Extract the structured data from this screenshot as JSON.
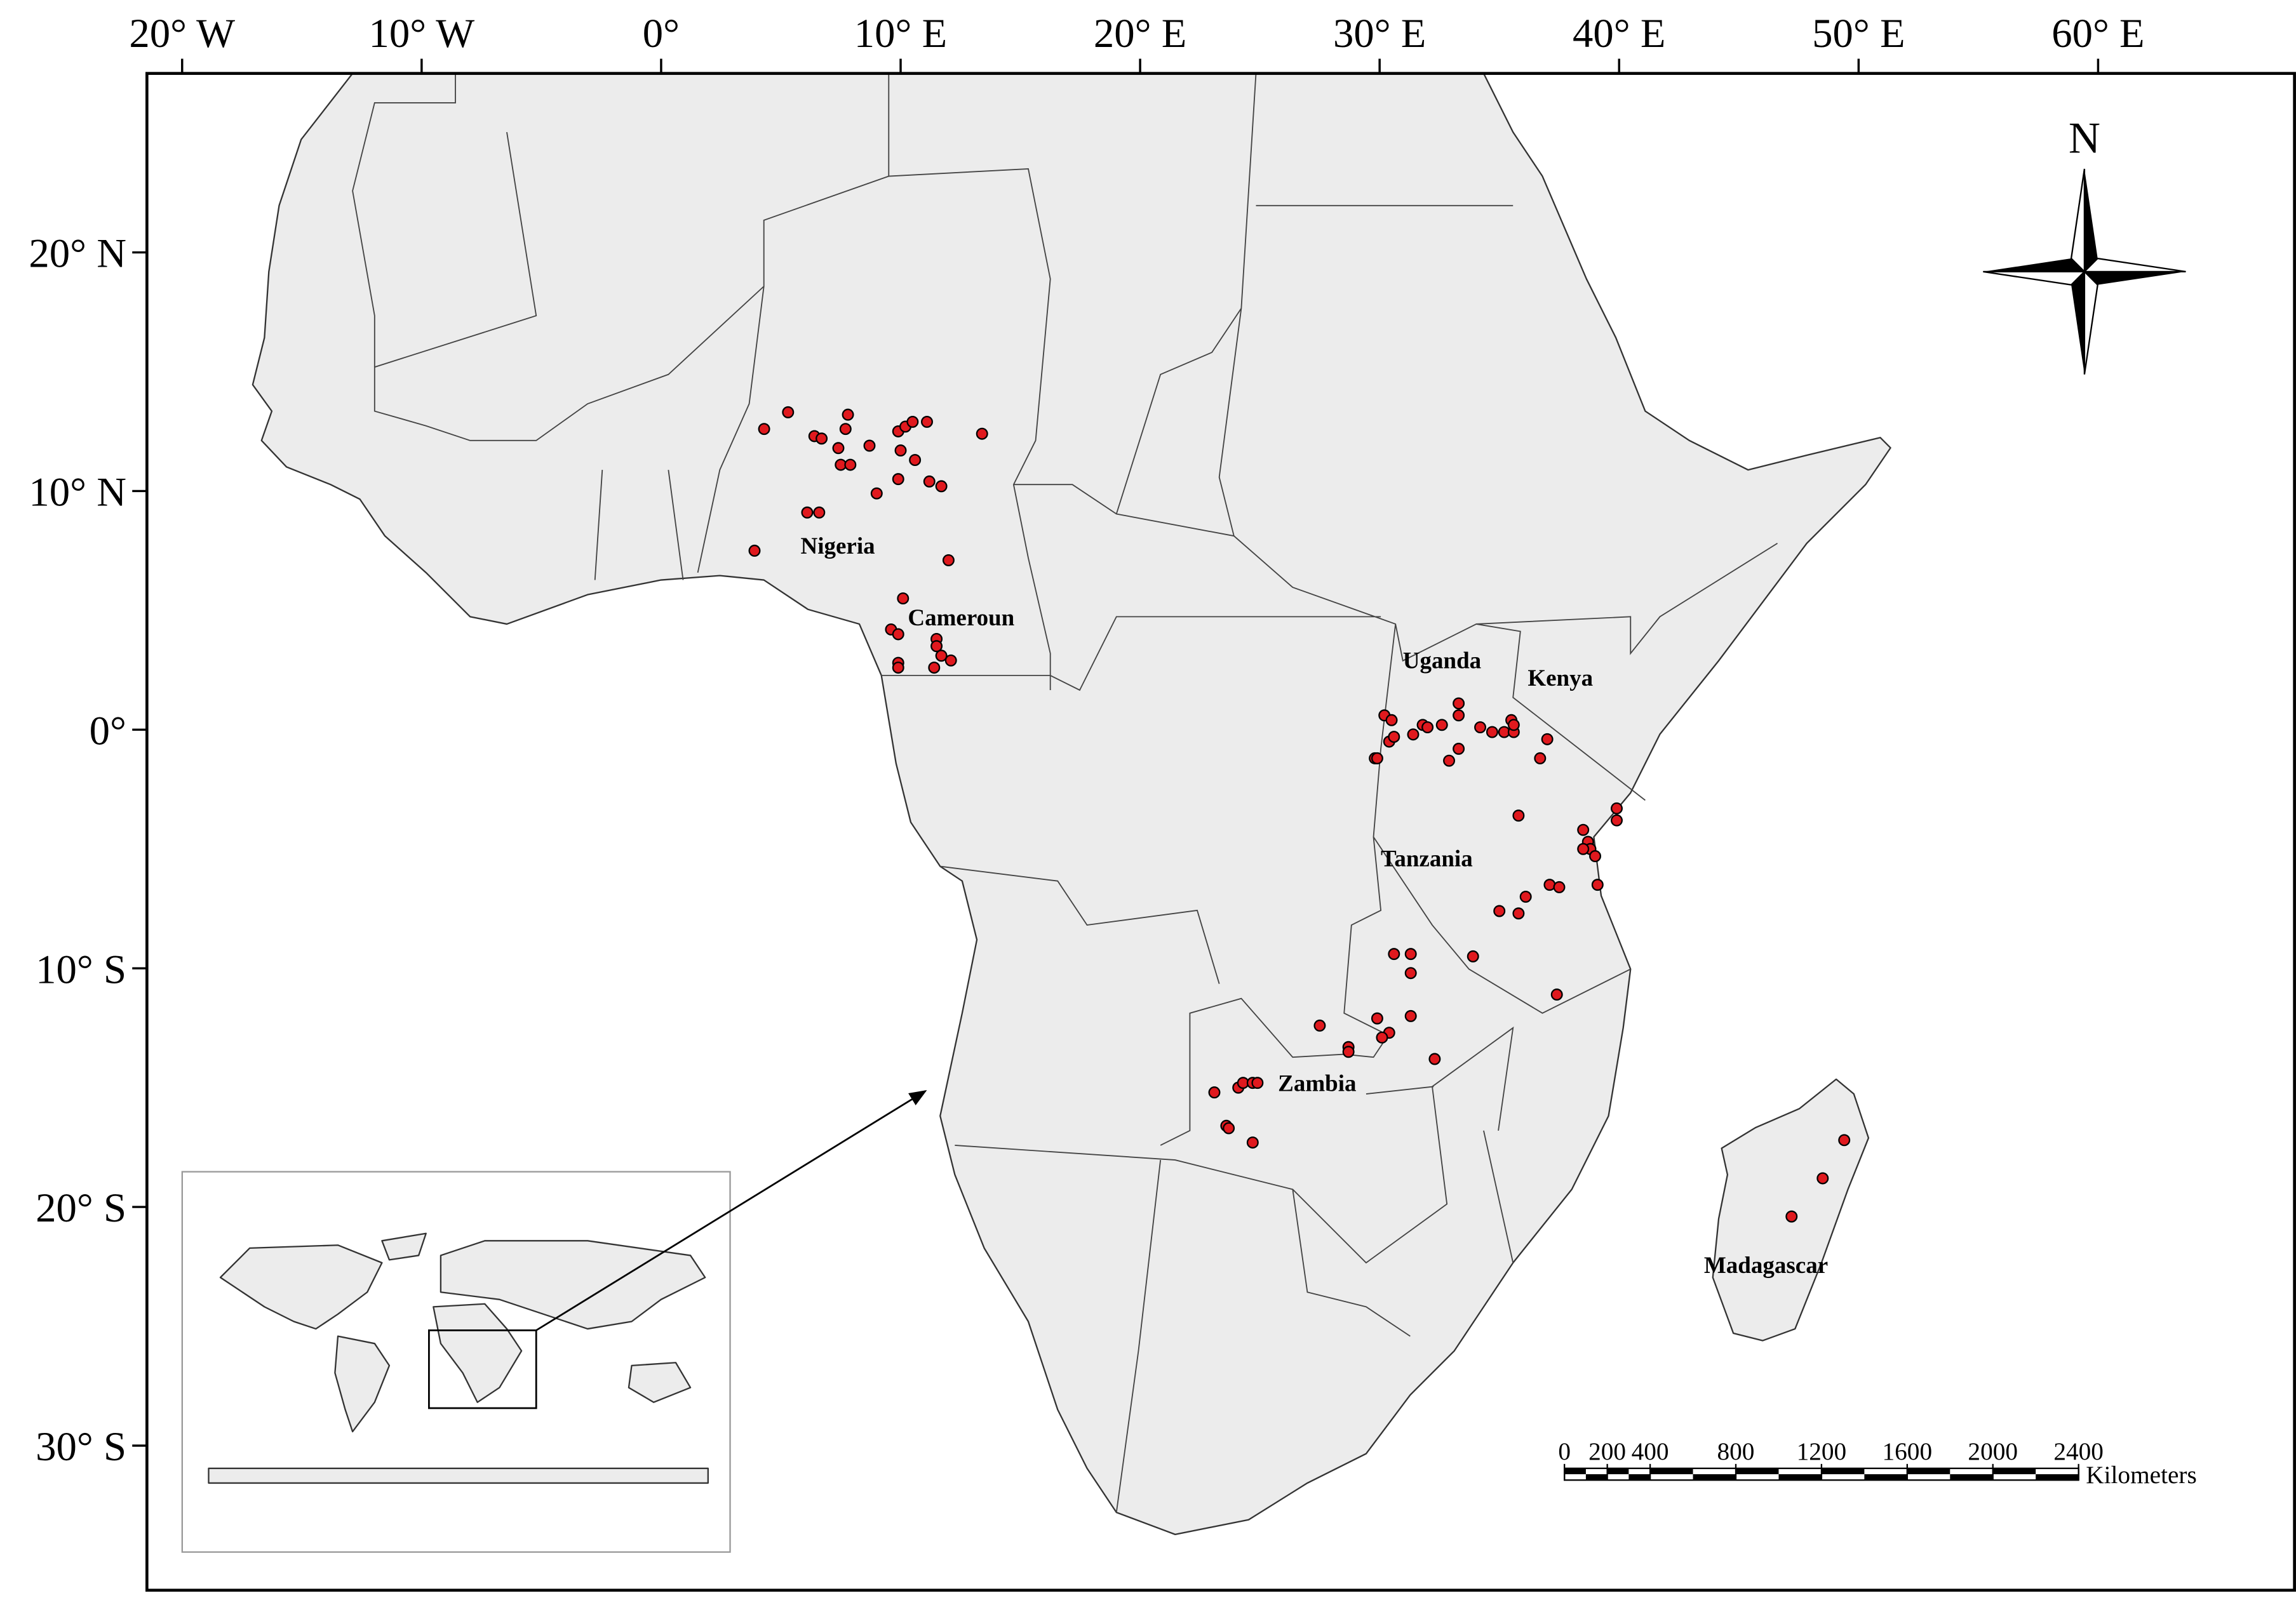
{
  "map": {
    "xlim": [
      -21.47,
      68.2
    ],
    "ylim": [
      -36.06,
      27.5
    ],
    "xticks": [
      {
        "value": -20,
        "label": "20° W"
      },
      {
        "value": -10,
        "label": "10° W"
      },
      {
        "value": 0,
        "label": "0°"
      },
      {
        "value": 10,
        "label": "10° E"
      },
      {
        "value": 20,
        "label": "20° E"
      },
      {
        "value": 30,
        "label": "30° E"
      },
      {
        "value": 40,
        "label": "40° E"
      },
      {
        "value": 50,
        "label": "50° E"
      },
      {
        "value": 60,
        "label": "60° E"
      }
    ],
    "yticks": [
      {
        "value": 20,
        "label": "20° N"
      },
      {
        "value": 10,
        "label": "10° N"
      },
      {
        "value": 0,
        "label": "0°"
      },
      {
        "value": -10,
        "label": "10° S"
      },
      {
        "value": -20,
        "label": "20° S"
      },
      {
        "value": -30,
        "label": "30° S"
      }
    ],
    "north_label": "N",
    "countries": [
      "Nigeria",
      "Cameroun",
      "Uganda",
      "Kenya",
      "Tanzania",
      "Zambia",
      "Madagascar"
    ],
    "point_color": "#e0191e",
    "points": {
      "lon": [
        4.3,
        5.3,
        6.4,
        6.7,
        7.4,
        7.8,
        7.7,
        8.7,
        7.5,
        7.9,
        9.9,
        10.2,
        10.5,
        11.1,
        10.0,
        10.6,
        11.2,
        11.7,
        13.4,
        9.0,
        9.9,
        6.1,
        6.6,
        3.9,
        12.0,
        10.1,
        9.6,
        9.9,
        9.9,
        9.9,
        11.5,
        11.5,
        11.7,
        11.4,
        12.1,
        30.2,
        30.5,
        30.4,
        30.6,
        31.4,
        31.8,
        32.0,
        32.6,
        33.3,
        33.3,
        34.2,
        34.7,
        35.2,
        35.5,
        35.6,
        35.6,
        37.0,
        36.7,
        29.8,
        29.9,
        32.9,
        33.3,
        35.8,
        38.5,
        38.7,
        38.8,
        38.5,
        39.0,
        39.9,
        39.9,
        39.1,
        37.1,
        37.5,
        36.1,
        35.8,
        35.0,
        33.9,
        37.4,
        30.6,
        31.3,
        31.3,
        31.3,
        29.9,
        30.4,
        30.1,
        32.3,
        27.5,
        28.7,
        28.7,
        23.1,
        24.1,
        24.3,
        24.7,
        24.9,
        23.6,
        23.7,
        24.7,
        49.4,
        48.5,
        47.2
      ],
      "lat": [
        12.6,
        13.3,
        12.3,
        12.2,
        11.8,
        13.2,
        12.6,
        11.9,
        11.1,
        11.1,
        12.5,
        12.7,
        12.9,
        12.9,
        11.7,
        11.3,
        10.4,
        10.2,
        12.4,
        9.9,
        10.5,
        9.1,
        9.1,
        7.5,
        7.1,
        5.5,
        4.2,
        4.0,
        2.8,
        2.6,
        3.8,
        3.5,
        3.1,
        2.6,
        2.9,
        0.6,
        0.4,
        -0.5,
        -0.3,
        -0.2,
        0.2,
        0.1,
        0.2,
        1.1,
        0.6,
        0.1,
        -0.1,
        -0.1,
        0.4,
        -0.1,
        0.2,
        -0.4,
        -1.2,
        -1.2,
        -1.2,
        -1.3,
        -0.8,
        -3.6,
        -4.2,
        -4.7,
        -5.0,
        -5.0,
        -5.3,
        -3.3,
        -3.8,
        -6.5,
        -6.5,
        -6.6,
        -7.0,
        -7.7,
        -7.6,
        -9.5,
        -11.1,
        -9.4,
        -9.4,
        -10.2,
        -12.0,
        -12.1,
        -12.7,
        -12.9,
        -13.8,
        -12.4,
        -13.3,
        -13.5,
        -15.2,
        -15.0,
        -14.8,
        -14.8,
        -14.8,
        -16.6,
        -16.7,
        -17.3,
        -17.2,
        -18.8,
        -20.4
      ]
    },
    "scale_bar": {
      "ticks": [
        0,
        200,
        400,
        800,
        1200,
        1600,
        2000,
        2400
      ],
      "unit": "Kilometers"
    }
  }
}
